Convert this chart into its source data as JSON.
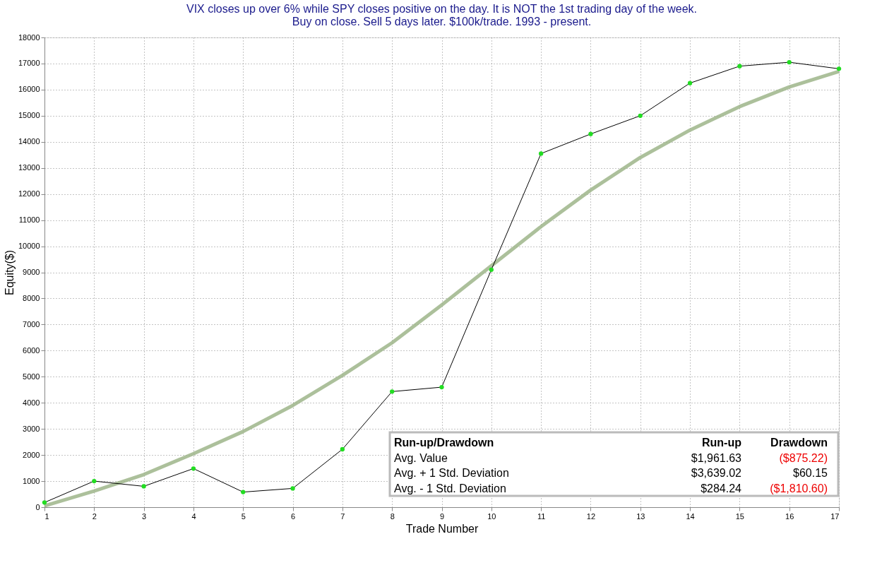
{
  "chart_data": {
    "type": "line",
    "title": "VIX closes up over 6% while SPY closes positive on the day. It is NOT the 1st trading day of the week.\nBuy on close. Sell 5 days later. $100k/trade. 1993 - present.",
    "xlabel": "Trade Number",
    "ylabel": "Equity($)",
    "x": [
      1,
      2,
      3,
      4,
      5,
      6,
      7,
      8,
      9,
      10,
      11,
      12,
      13,
      14,
      15,
      16,
      17
    ],
    "series": [
      {
        "color": "#9db58a",
        "values": [
          50,
          620,
          1250,
          2050,
          2900,
          3900,
          5050,
          6300,
          7750,
          9250,
          10750,
          12150,
          13400,
          14450,
          15350,
          16100,
          16700
        ],
        "marker": "none"
      },
      {
        "color": "#000000",
        "values": [
          180,
          1000,
          800,
          1480,
          580,
          720,
          2220,
          4430,
          4600,
          9100,
          13550,
          14300,
          15000,
          16250,
          16900,
          17050,
          16800
        ],
        "marker": "circle"
      }
    ],
    "xlim": [
      1,
      17
    ],
    "xticks": [
      1,
      2,
      3,
      4,
      5,
      6,
      7,
      8,
      9,
      10,
      11,
      12,
      13,
      14,
      15,
      16,
      17
    ],
    "ylim": [
      0,
      18000
    ],
    "yticks": [
      0,
      1000,
      2000,
      3000,
      4000,
      5000,
      6000,
      7000,
      8000,
      9000,
      10000,
      11000,
      12000,
      13000,
      14000,
      15000,
      16000,
      17000,
      18000
    ],
    "grid": true,
    "annotations": [
      "Run-up/Drawdown",
      "Run-up",
      "Drawdown",
      "Avg. Value",
      "$1,961.63",
      "($875.22)",
      "Avg. + 1 Std. Deviation",
      "$3,639.02",
      "$60.15",
      "Avg. - 1 Std. Deviation",
      "$284.24",
      "($1,810.60)"
    ]
  }
}
